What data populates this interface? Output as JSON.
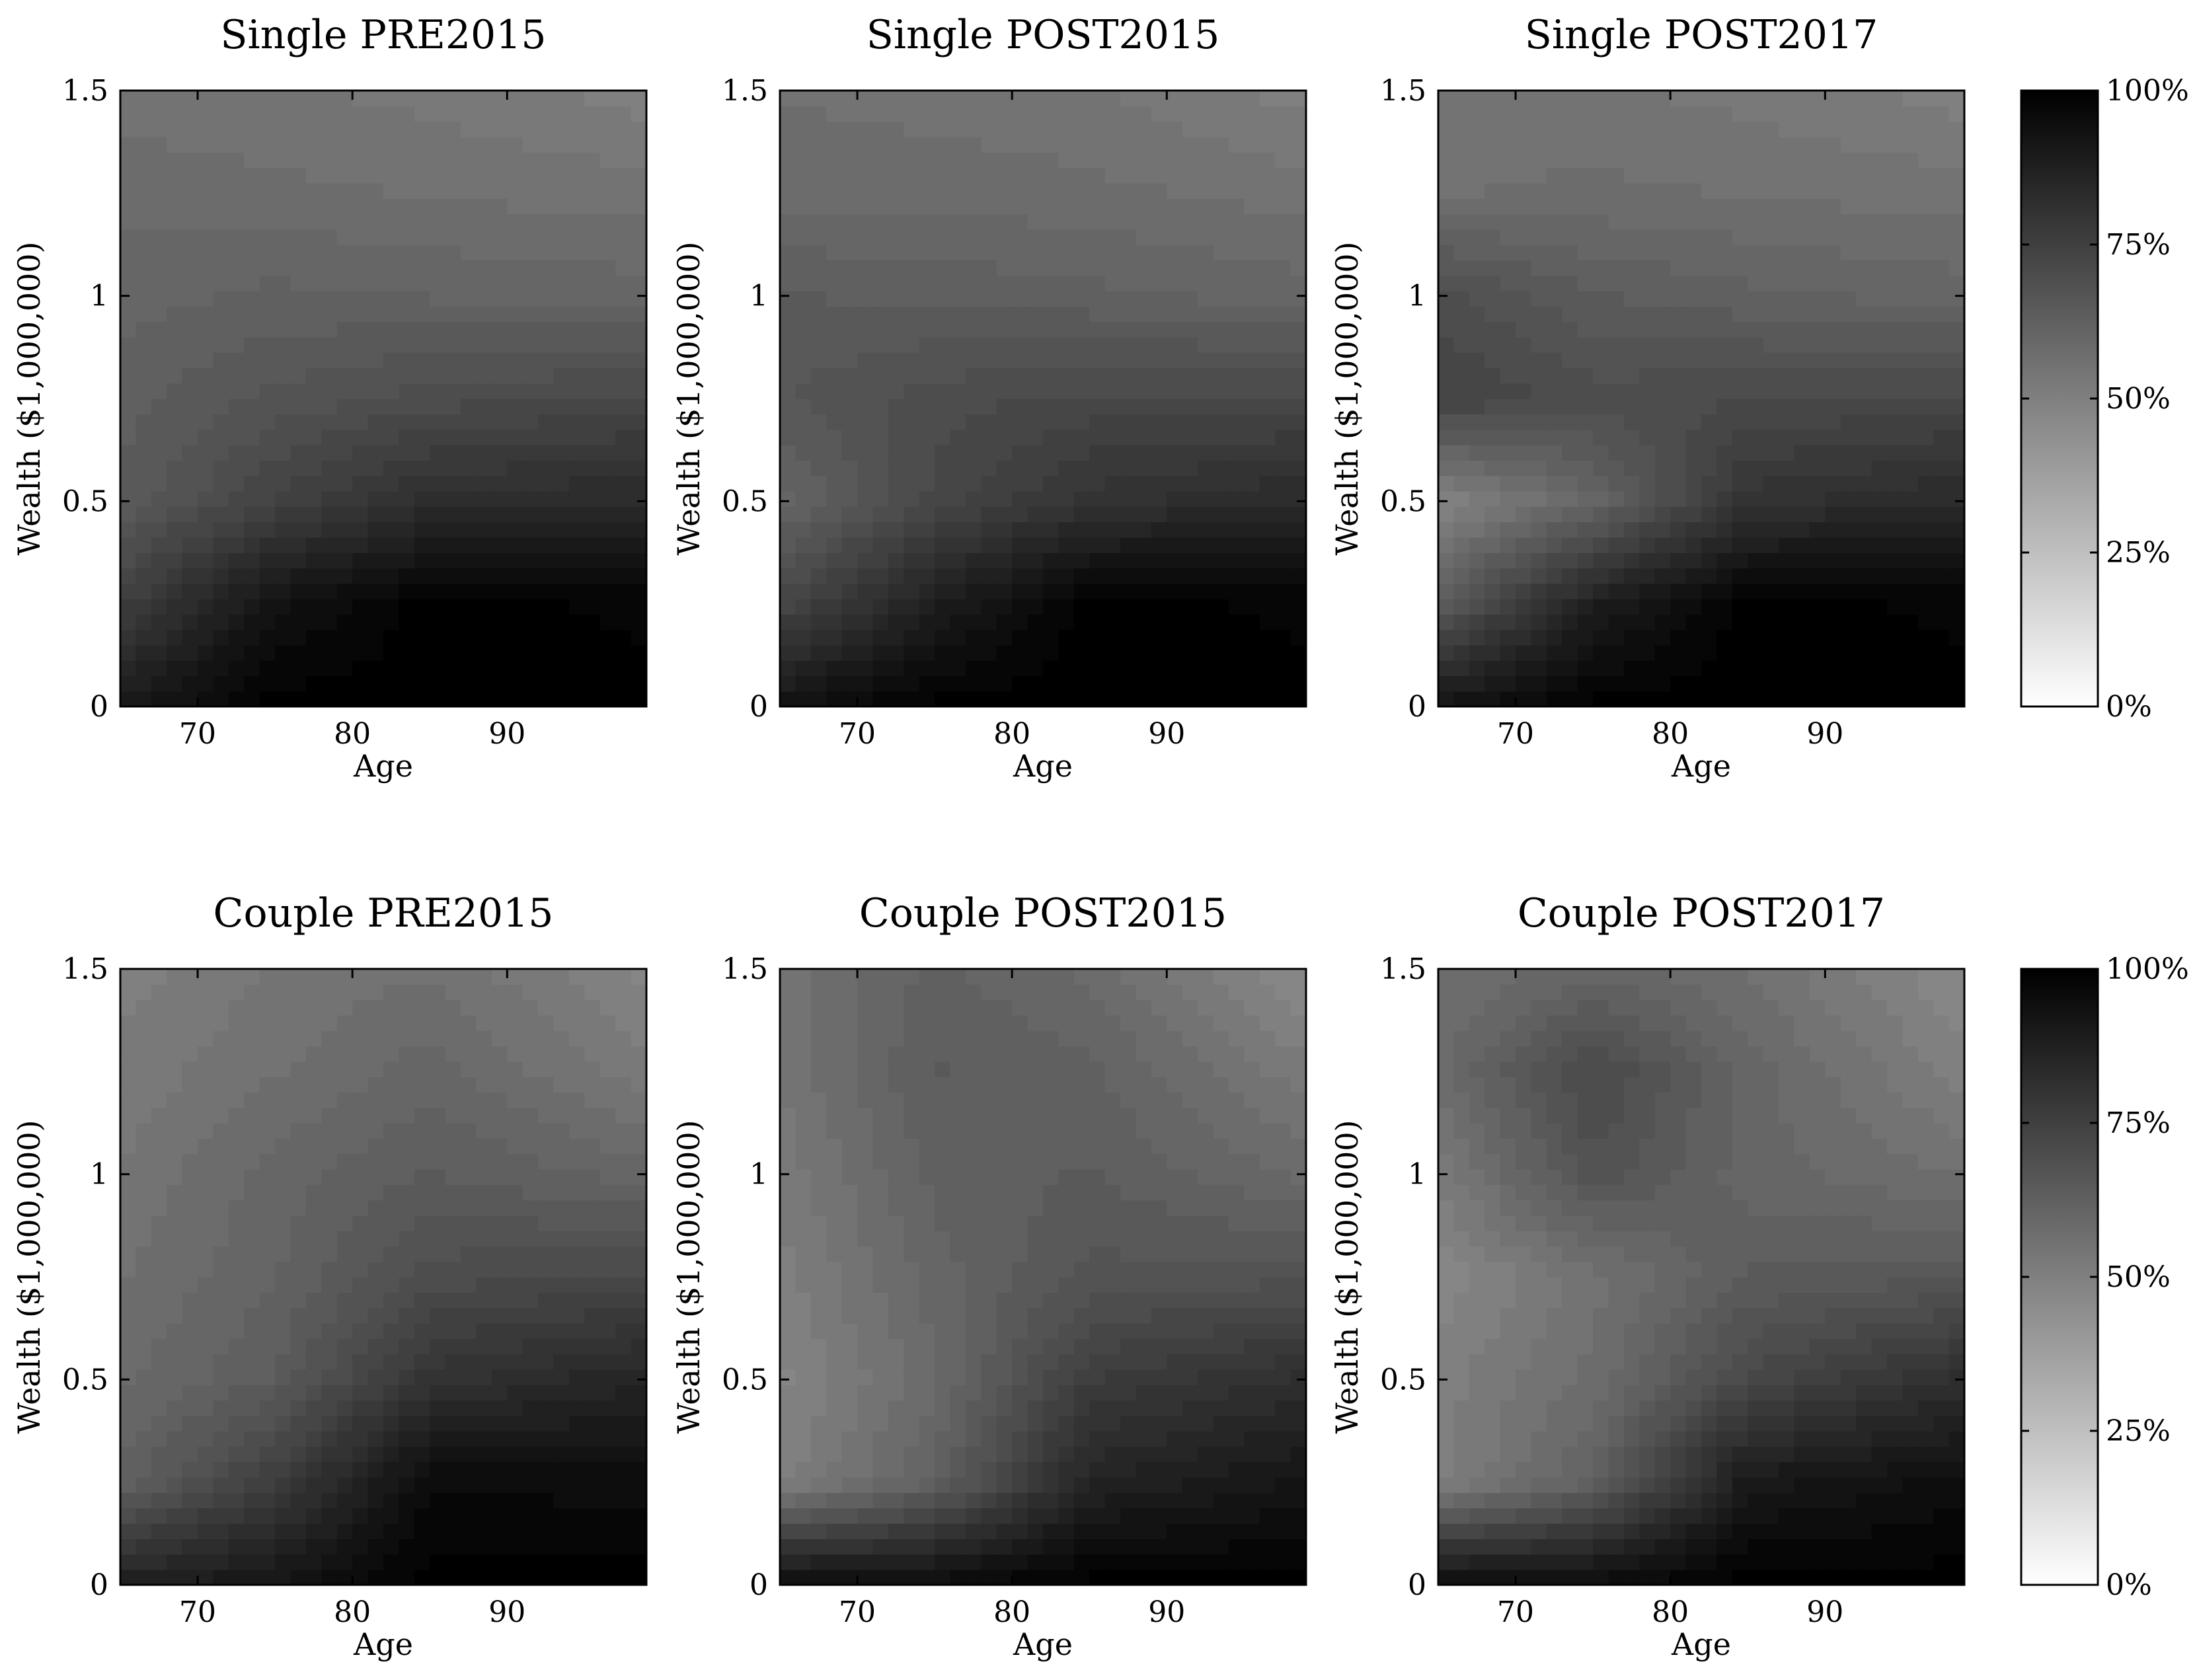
{
  "chart_data": [
    {
      "type": "heatmap",
      "title": "Single PRE2015",
      "xlabel": "Age",
      "ylabel": "Wealth ($1,000,000)",
      "xlim": [
        65,
        99
      ],
      "ylim": [
        0,
        1.5
      ],
      "xticks": [
        "70",
        "80",
        "90"
      ],
      "yticks": [
        "0",
        "0.5",
        "1",
        "1.5"
      ],
      "grid": false,
      "x": [
        65,
        75,
        85,
        99
      ],
      "y": [
        0,
        0.25,
        0.5,
        0.75,
        1.0,
        1.25,
        1.5
      ],
      "z": [
        [
          90,
          100,
          100,
          100
        ],
        [
          75,
          93,
          100,
          98
        ],
        [
          64,
          74,
          82,
          84
        ],
        [
          63,
          67,
          70,
          72
        ],
        [
          60,
          62,
          61,
          60
        ],
        [
          58,
          57,
          56,
          55
        ],
        [
          55,
          54,
          53,
          50
        ]
      ]
    },
    {
      "type": "heatmap",
      "title": "Single POST2015",
      "xlabel": "Age",
      "ylabel": "Wealth ($1,000,000)",
      "xlim": [
        65,
        99
      ],
      "ylim": [
        0,
        1.5
      ],
      "xticks": [
        "70",
        "80",
        "90"
      ],
      "yticks": [
        "0",
        "0.5",
        "1",
        "1.5"
      ],
      "grid": false,
      "x": [
        65,
        75,
        85,
        99
      ],
      "y": [
        0,
        0.25,
        0.5,
        0.75,
        1.0,
        1.25,
        1.5
      ],
      "z": [
        [
          93,
          100,
          100,
          100
        ],
        [
          72,
          88,
          100,
          98
        ],
        [
          60,
          72,
          80,
          84
        ],
        [
          66,
          70,
          72,
          72
        ],
        [
          64,
          63,
          62,
          60
        ],
        [
          58,
          58,
          57,
          55
        ],
        [
          56,
          55,
          54,
          50
        ]
      ]
    },
    {
      "type": "heatmap",
      "title": "Single POST2017",
      "xlabel": "Age",
      "ylabel": "Wealth ($1,000,000)",
      "xlim": [
        65,
        99
      ],
      "ylim": [
        0,
        1.5
      ],
      "xticks": [
        "70",
        "80",
        "90"
      ],
      "yticks": [
        "0",
        "0.5",
        "1",
        "1.5"
      ],
      "grid": false,
      "x": [
        65,
        75,
        85,
        99
      ],
      "y": [
        0,
        0.25,
        0.5,
        0.75,
        1.0,
        1.25,
        1.5
      ],
      "z": [
        [
          92,
          100,
          100,
          100
        ],
        [
          64,
          88,
          100,
          98
        ],
        [
          48,
          60,
          80,
          84
        ],
        [
          74,
          70,
          71,
          72
        ],
        [
          70,
          64,
          62,
          60
        ],
        [
          56,
          57,
          56,
          55
        ],
        [
          54,
          54,
          53,
          50
        ]
      ]
    },
    {
      "type": "heatmap",
      "title": "Couple PRE2015",
      "xlabel": "Age",
      "ylabel": "Wealth ($1,000,000)",
      "xlim": [
        65,
        99
      ],
      "ylim": [
        0,
        1.5
      ],
      "xticks": [
        "70",
        "80",
        "90"
      ],
      "yticks": [
        "0",
        "0.5",
        "1",
        "1.5"
      ],
      "grid": false,
      "x": [
        65,
        75,
        85,
        99
      ],
      "y": [
        0,
        0.25,
        0.5,
        0.75,
        1.0,
        1.25,
        1.5
      ],
      "z": [
        [
          88,
          92,
          100,
          100
        ],
        [
          62,
          76,
          96,
          95
        ],
        [
          58,
          64,
          80,
          86
        ],
        [
          56,
          61,
          70,
          72
        ],
        [
          54,
          60,
          64,
          60
        ],
        [
          52,
          56,
          60,
          52
        ],
        [
          50,
          54,
          56,
          48
        ]
      ]
    },
    {
      "type": "heatmap",
      "title": "Couple POST2015",
      "xlabel": "Age",
      "ylabel": "Wealth ($1,000,000)",
      "xlim": [
        65,
        99
      ],
      "ylim": [
        0,
        1.5
      ],
      "xticks": [
        "70",
        "80",
        "90"
      ],
      "yticks": [
        "0",
        "0.5",
        "1",
        "1.5"
      ],
      "grid": false,
      "x": [
        65,
        75,
        85,
        99
      ],
      "y": [
        0,
        0.25,
        0.5,
        0.75,
        1.0,
        1.25,
        1.5
      ],
      "z": [
        [
          96,
          96,
          100,
          100
        ],
        [
          50,
          62,
          86,
          92
        ],
        [
          48,
          58,
          76,
          82
        ],
        [
          50,
          60,
          67,
          68
        ],
        [
          52,
          62,
          64,
          58
        ],
        [
          54,
          64,
          62,
          52
        ],
        [
          55,
          62,
          58,
          46
        ]
      ]
    },
    {
      "type": "heatmap",
      "title": "Couple POST2017",
      "xlabel": "Age",
      "ylabel": "Wealth ($1,000,000)",
      "xlim": [
        65,
        99
      ],
      "ylim": [
        0,
        1.5
      ],
      "xticks": [
        "70",
        "80",
        "90"
      ],
      "yticks": [
        "0",
        "0.5",
        "1",
        "1.5"
      ],
      "grid": false,
      "x": [
        65,
        75,
        85,
        99
      ],
      "y": [
        0,
        0.25,
        0.5,
        0.75,
        1.0,
        1.25,
        1.5
      ],
      "z": [
        [
          96,
          96,
          100,
          100
        ],
        [
          50,
          62,
          90,
          95
        ],
        [
          50,
          57,
          72,
          82
        ],
        [
          47,
          55,
          64,
          66
        ],
        [
          52,
          68,
          60,
          56
        ],
        [
          58,
          72,
          60,
          50
        ],
        [
          56,
          60,
          56,
          46
        ]
      ]
    }
  ],
  "colorbars": [
    {
      "ticks": [
        "0%",
        "25%",
        "50%",
        "75%",
        "100%"
      ],
      "min": 0,
      "max": 100
    },
    {
      "ticks": [
        "0%",
        "25%",
        "50%",
        "75%",
        "100%"
      ],
      "min": 0,
      "max": 100
    }
  ]
}
